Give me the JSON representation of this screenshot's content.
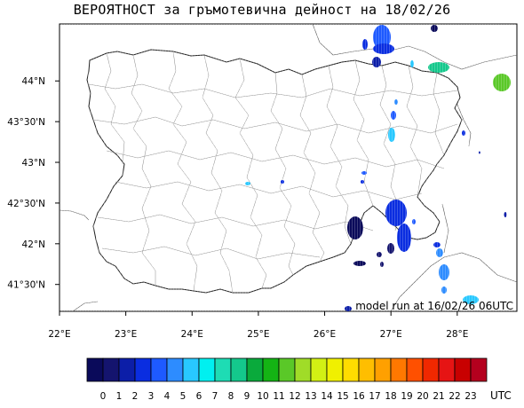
{
  "title": "ВЕРОЯТНОСТ за гръмотевична дейност на 18/02/26",
  "model_run": "model run at 16/02/26 06UTC",
  "map": {
    "lon_range": [
      22,
      28.9
    ],
    "lat_range": [
      41.17,
      44.7
    ],
    "x_ticks": [
      {
        "lon": 22,
        "label": "22°E"
      },
      {
        "lon": 23,
        "label": "23°E"
      },
      {
        "lon": 24,
        "label": "24°E"
      },
      {
        "lon": 25,
        "label": "25°E"
      },
      {
        "lon": 26,
        "label": "26°E"
      },
      {
        "lon": 27,
        "label": "27°E"
      },
      {
        "lon": 28,
        "label": "28°E"
      }
    ],
    "y_ticks": [
      {
        "lat": 44.0,
        "label": "44°N"
      },
      {
        "lat": 43.5,
        "label": "43°30'N"
      },
      {
        "lat": 43.0,
        "label": "43°N"
      },
      {
        "lat": 42.5,
        "label": "42°30'N"
      },
      {
        "lat": 42.0,
        "label": "42°N"
      },
      {
        "lat": 41.5,
        "label": "41°30'N"
      }
    ]
  },
  "colorbar": {
    "labels": [
      "0",
      "1",
      "2",
      "3",
      "4",
      "5",
      "6",
      "7",
      "8",
      "9",
      "10",
      "11",
      "12",
      "13",
      "14",
      "15",
      "16",
      "17",
      "18",
      "19",
      "20",
      "21",
      "22",
      "23"
    ],
    "unit": "UTC",
    "colors": [
      "#0a0a5a",
      "#14146e",
      "#0c1ea8",
      "#0a2de0",
      "#1e5aff",
      "#2d8cff",
      "#28c8ff",
      "#00f0f0",
      "#1edcb4",
      "#14c88c",
      "#0aaa3c",
      "#14b414",
      "#5ac828",
      "#a0dc28",
      "#d2f014",
      "#f0f000",
      "#ffdc00",
      "#ffbe00",
      "#ffa000",
      "#ff7800",
      "#ff5000",
      "#f02800",
      "#e61414",
      "#c80000",
      "#b4001e"
    ]
  }
}
